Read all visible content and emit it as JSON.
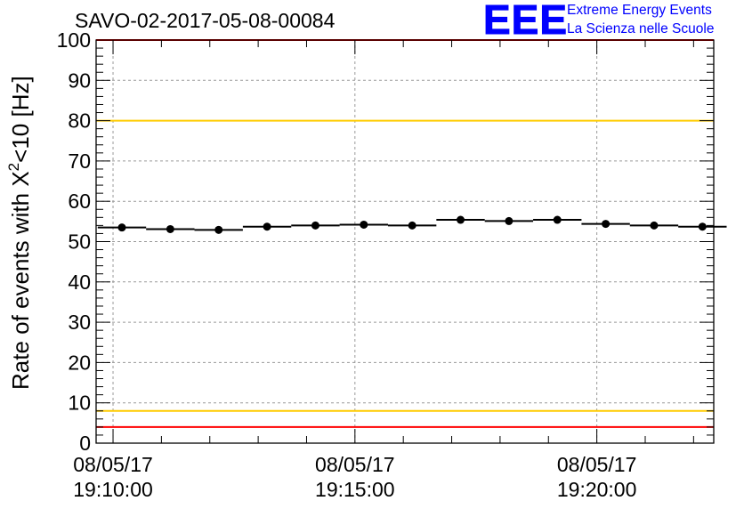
{
  "title": "SAVO-02-2017-05-08-00084",
  "logo": {
    "mark": "EEE",
    "line1": "Extreme Energy Events",
    "line2": "La Scienza nelle Scuole"
  },
  "colors": {
    "points": "#000000",
    "red_lines": "#ff0000",
    "yellow_lines": "#ffcc00",
    "grid": "#999999",
    "logo": "#0000ff"
  },
  "chart_data": {
    "type": "scatter",
    "title": "SAVO-02-2017-05-08-00084",
    "ylabel": "Rate of events with X",
    "ylabel_sup": "2",
    "ylabel_tail": "<10 [Hz]",
    "ylim": [
      0,
      100
    ],
    "yticks": [
      0,
      10,
      20,
      30,
      40,
      50,
      60,
      70,
      80,
      90,
      100
    ],
    "xlim": [
      "19:09:39",
      "19:22:25"
    ],
    "xticks": [
      {
        "t": "19:10:00",
        "date": "08/05/17",
        "time": "19:10:00"
      },
      {
        "t": "19:15:00",
        "date": "08/05/17",
        "time": "19:15:00"
      },
      {
        "t": "19:20:00",
        "date": "08/05/17",
        "time": "19:20:00"
      }
    ],
    "grid": true,
    "reference_lines": [
      {
        "y": 100,
        "color": "red"
      },
      {
        "y": 80,
        "color": "yellow"
      },
      {
        "y": 8,
        "color": "yellow"
      },
      {
        "y": 4,
        "color": "red"
      }
    ],
    "series": [
      {
        "x": [
          "19:10:11",
          "19:11:11",
          "19:12:11",
          "19:13:11",
          "19:14:11",
          "19:15:11",
          "19:16:11",
          "19:17:11",
          "19:18:11",
          "19:19:11",
          "19:20:11",
          "19:21:11",
          "19:22:11"
        ],
        "x_half_width_s": 30,
        "y": [
          53.5,
          53.1,
          52.9,
          53.7,
          54.0,
          54.2,
          54.0,
          55.4,
          55.1,
          55.4,
          54.4,
          54.0,
          53.7
        ]
      }
    ]
  }
}
